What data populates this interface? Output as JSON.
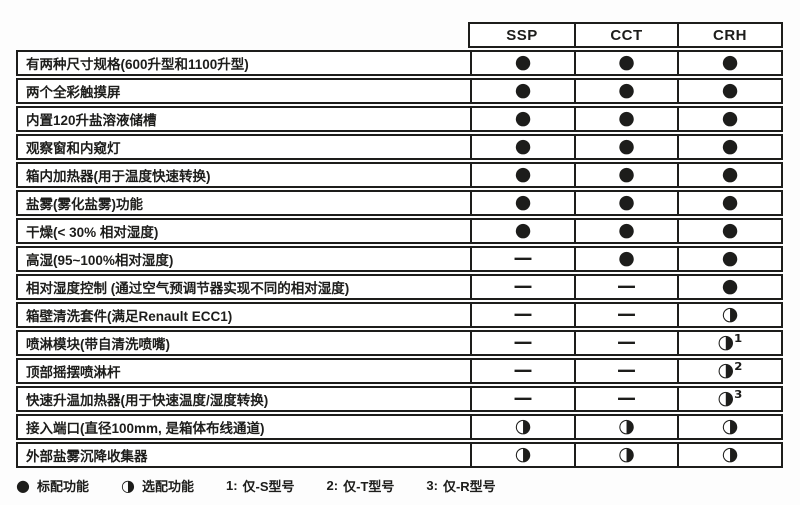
{
  "colors": {
    "ink": "#1d1d1b",
    "background": "#ffffff"
  },
  "table": {
    "columns": [
      {
        "label": "SSP"
      },
      {
        "label": "CCT"
      },
      {
        "label": "CRH"
      }
    ],
    "rows": [
      {
        "feature": "有两种尺寸规格(600升型和1100升型)",
        "values": [
          "●",
          "●",
          "●"
        ]
      },
      {
        "feature": "两个全彩触摸屏",
        "values": [
          "●",
          "●",
          "●"
        ]
      },
      {
        "feature": "内置120升盐溶液储槽",
        "values": [
          "●",
          "●",
          "●"
        ]
      },
      {
        "feature": "观察窗和内窥灯",
        "values": [
          "●",
          "●",
          "●"
        ]
      },
      {
        "feature": "箱内加热器(用于温度快速转换)",
        "values": [
          "●",
          "●",
          "●"
        ]
      },
      {
        "feature": "盐雾(雾化盐雾)功能",
        "values": [
          "●",
          "●",
          "●"
        ]
      },
      {
        "feature": "干燥(< 30% 相对湿度)",
        "values": [
          "●",
          "●",
          "●"
        ]
      },
      {
        "feature": "高湿(95~100%相对湿度)",
        "values": [
          "—",
          "●",
          "●"
        ]
      },
      {
        "feature": "相对湿度控制 (通过空气预调节器实现不同的相对湿度)",
        "values": [
          "—",
          "—",
          "●"
        ]
      },
      {
        "feature": "箱壁清洗套件(满足Renault ECC1)",
        "values": [
          "—",
          "—",
          "◑"
        ]
      },
      {
        "feature": "喷淋模块(带自清洗喷嘴)",
        "values": [
          "—",
          "—",
          "◑¹"
        ]
      },
      {
        "feature": "顶部摇摆喷淋杆",
        "values": [
          "—",
          "—",
          "◑²"
        ]
      },
      {
        "feature": "快速升温加热器(用于快速温度/湿度转换)",
        "values": [
          "—",
          "—",
          "◑³"
        ]
      },
      {
        "feature": "接入端口(直径100mm, 是箱体布线通道)",
        "values": [
          "◑",
          "◑",
          "◑"
        ]
      },
      {
        "feature": "外部盐雾沉降收集器",
        "values": [
          "◑",
          "◑",
          "◑"
        ]
      }
    ]
  },
  "legend": {
    "items": [
      {
        "symbol": "●",
        "label": "标配功能"
      },
      {
        "symbol": "◑",
        "label": "选配功能"
      }
    ],
    "notes": [
      {
        "num": "1:",
        "label": "仅-S型号"
      },
      {
        "num": "2:",
        "label": "仅-T型号"
      },
      {
        "num": "3:",
        "label": "仅-R型号"
      }
    ]
  }
}
